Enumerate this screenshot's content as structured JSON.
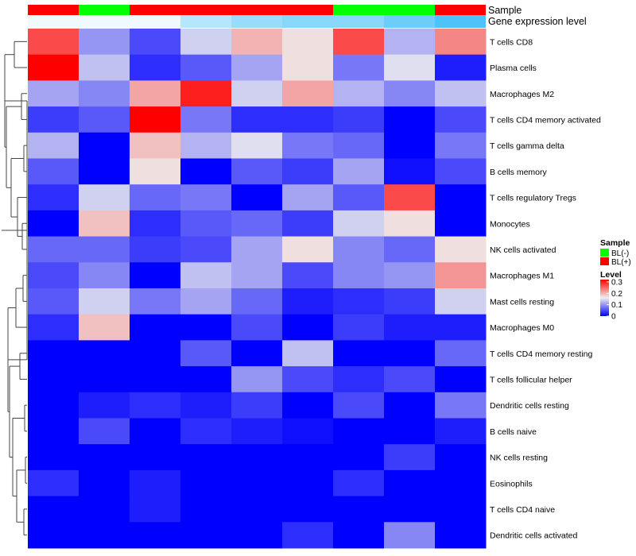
{
  "chart_data": {
    "type": "heatmap",
    "title": "",
    "rows": [
      "T cells CD8",
      "Plasma cells",
      "Macrophages M2",
      "T cells CD4 memory activated",
      "T cells gamma delta",
      "B cells memory",
      "T cells regulatory  Tregs",
      "Monocytes",
      "NK cells activated",
      "Macrophages M1",
      "Mast cells resting",
      "Macrophages M0",
      "T cells CD4 memory resting",
      "T cells follicular helper",
      "Dendritic cells resting",
      "B cells naive",
      "NK cells resting",
      "Eosinophils",
      "T cells CD4 naive",
      "Dendritic cells activated"
    ],
    "sample_groups": [
      "BL(+)",
      "BL(-)",
      "BL(+)",
      "BL(+)",
      "BL(+)",
      "BL(+)",
      "BL(-)",
      "BL(-)",
      "BL(+)"
    ],
    "gene_expression_level": [
      0.01,
      0.01,
      0.01,
      0.05,
      0.07,
      0.08,
      0.08,
      0.1,
      0.12
    ],
    "values": [
      [
        0.27,
        0.1,
        0.05,
        0.14,
        0.2,
        0.17,
        0.27,
        0.12,
        0.23
      ],
      [
        0.32,
        0.13,
        0.03,
        0.06,
        0.11,
        0.17,
        0.08,
        0.15,
        0.02
      ],
      [
        0.11,
        0.09,
        0.21,
        0.3,
        0.14,
        0.21,
        0.12,
        0.09,
        0.13
      ],
      [
        0.04,
        0.06,
        0.32,
        0.08,
        0.03,
        0.03,
        0.04,
        0.0,
        0.05
      ],
      [
        0.12,
        0.0,
        0.19,
        0.12,
        0.15,
        0.08,
        0.07,
        0.0,
        0.08
      ],
      [
        0.06,
        0.0,
        0.17,
        0.0,
        0.06,
        0.04,
        0.11,
        0.01,
        0.05
      ],
      [
        0.03,
        0.14,
        0.07,
        0.08,
        0.0,
        0.11,
        0.06,
        0.27,
        0.0
      ],
      [
        0.0,
        0.19,
        0.03,
        0.06,
        0.07,
        0.04,
        0.14,
        0.17,
        0.0
      ],
      [
        0.07,
        0.07,
        0.04,
        0.05,
        0.11,
        0.17,
        0.09,
        0.07,
        0.17
      ],
      [
        0.05,
        0.09,
        0.0,
        0.13,
        0.11,
        0.05,
        0.09,
        0.1,
        0.22
      ],
      [
        0.06,
        0.14,
        0.08,
        0.11,
        0.07,
        0.02,
        0.03,
        0.04,
        0.14
      ],
      [
        0.03,
        0.19,
        0.0,
        0.0,
        0.05,
        0.0,
        0.04,
        0.02,
        0.02
      ],
      [
        0.0,
        0.0,
        0.0,
        0.06,
        0.0,
        0.13,
        0.0,
        0.0,
        0.07
      ],
      [
        0.0,
        0.0,
        0.0,
        0.0,
        0.1,
        0.05,
        0.03,
        0.05,
        0.0
      ],
      [
        0.0,
        0.02,
        0.03,
        0.02,
        0.04,
        0.0,
        0.05,
        0.0,
        0.08
      ],
      [
        0.0,
        0.05,
        0.0,
        0.03,
        0.02,
        0.01,
        0.0,
        0.0,
        0.02
      ],
      [
        0.0,
        0.0,
        0.0,
        0.0,
        0.0,
        0.0,
        0.0,
        0.04,
        0.0
      ],
      [
        0.03,
        0.0,
        0.02,
        0.0,
        0.0,
        0.0,
        0.03,
        0.0,
        0.0
      ],
      [
        0.0,
        0.0,
        0.02,
        0.0,
        0.0,
        0.0,
        0.0,
        0.0,
        0.0
      ],
      [
        0.0,
        0.0,
        0.0,
        0.0,
        0.0,
        0.03,
        0.0,
        0.09,
        0.0
      ]
    ],
    "value_range": [
      0,
      0.32
    ],
    "annotations": {
      "sample_label": "Sample",
      "gene_expression_label": "Gene expression level"
    },
    "legend": {
      "sample_title": "Sample",
      "sample_entries": [
        {
          "label": "BL(-)",
          "color": "#00ff00"
        },
        {
          "label": "BL(+)",
          "color": "#ff0000"
        }
      ],
      "level_title": "Level",
      "level_ticks": [
        0,
        0.1,
        0.2,
        0.3
      ],
      "level_tick_labels": [
        "0",
        "0.1",
        "0.2",
        "0.3"
      ],
      "placement": "right"
    },
    "colors": {
      "low": "#0000ff",
      "mid": "#eeeeee",
      "high": "#ff0000",
      "gene_expr_low": "#ffffff",
      "gene_expr_high": "#4dc3f7",
      "dendrogram": "#444444"
    }
  }
}
